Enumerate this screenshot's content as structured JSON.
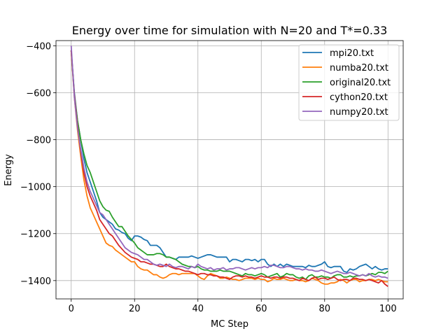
{
  "chart_data": {
    "type": "line",
    "title": "Energy over time for simulation with N=20 and T*=0.33",
    "xlabel": "MC Step",
    "ylabel": "Energy",
    "xlim": [
      -4.8,
      104.8
    ],
    "ylim": [
      -1478,
      -378
    ],
    "xticks": [
      0,
      20,
      40,
      60,
      80,
      100
    ],
    "yticks": [
      -400,
      -600,
      -800,
      -1000,
      -1200,
      -1400
    ],
    "xtick_labels": [
      "0",
      "20",
      "40",
      "60",
      "80",
      "100"
    ],
    "ytick_labels": [
      "−400",
      "−600",
      "−800",
      "−1000",
      "−1200",
      "−1400"
    ],
    "grid": true,
    "legend_position": "top-right",
    "x": [
      0,
      1,
      2,
      3,
      4,
      5,
      6,
      7,
      8,
      9,
      10,
      11,
      12,
      13,
      14,
      15,
      16,
      17,
      18,
      19,
      20,
      21,
      22,
      23,
      24,
      25,
      26,
      27,
      28,
      29,
      30,
      31,
      32,
      33,
      34,
      35,
      36,
      37,
      38,
      39,
      40,
      41,
      42,
      43,
      44,
      45,
      46,
      47,
      48,
      49,
      50,
      51,
      52,
      53,
      54,
      55,
      56,
      57,
      58,
      59,
      60,
      61,
      62,
      63,
      64,
      65,
      66,
      67,
      68,
      69,
      70,
      71,
      72,
      73,
      74,
      75,
      76,
      77,
      78,
      79,
      80,
      81,
      82,
      83,
      84,
      85,
      86,
      87,
      88,
      89,
      90,
      91,
      92,
      93,
      94,
      95,
      96,
      97,
      98,
      99,
      100
    ],
    "series": [
      {
        "name": "mpi20.txt",
        "color": "#1f77b4",
        "values": [
          -420,
          -600,
          -720,
          -800,
          -880,
          -940,
          -980,
          -1020,
          -1060,
          -1110,
          -1130,
          -1140,
          -1150,
          -1160,
          -1180,
          -1185,
          -1195,
          -1200,
          -1220,
          -1230,
          -1210,
          -1210,
          -1215,
          -1225,
          -1230,
          -1250,
          -1250,
          -1250,
          -1260,
          -1280,
          -1300,
          -1300,
          -1305,
          -1310,
          -1300,
          -1300,
          -1300,
          -1300,
          -1295,
          -1300,
          -1305,
          -1300,
          -1295,
          -1290,
          -1290,
          -1295,
          -1300,
          -1300,
          -1300,
          -1300,
          -1320,
          -1310,
          -1310,
          -1315,
          -1320,
          -1310,
          -1310,
          -1315,
          -1310,
          -1320,
          -1310,
          -1310,
          -1330,
          -1340,
          -1330,
          -1340,
          -1330,
          -1340,
          -1330,
          -1335,
          -1340,
          -1340,
          -1340,
          -1340,
          -1345,
          -1335,
          -1340,
          -1340,
          -1335,
          -1330,
          -1320,
          -1340,
          -1345,
          -1340,
          -1340,
          -1340,
          -1360,
          -1365,
          -1350,
          -1355,
          -1350,
          -1340,
          -1335,
          -1330,
          -1340,
          -1350,
          -1340,
          -1350,
          -1355,
          -1350,
          -1350
        ]
      },
      {
        "name": "numba20.txt",
        "color": "#ff7f0e",
        "values": [
          -420,
          -620,
          -760,
          -870,
          -970,
          -1040,
          -1090,
          -1120,
          -1150,
          -1180,
          -1210,
          -1240,
          -1250,
          -1255,
          -1270,
          -1280,
          -1290,
          -1300,
          -1310,
          -1320,
          -1320,
          -1340,
          -1350,
          -1355,
          -1355,
          -1365,
          -1375,
          -1375,
          -1385,
          -1390,
          -1385,
          -1375,
          -1370,
          -1370,
          -1375,
          -1370,
          -1370,
          -1370,
          -1370,
          -1370,
          -1380,
          -1390,
          -1395,
          -1380,
          -1370,
          -1375,
          -1380,
          -1390,
          -1390,
          -1385,
          -1390,
          -1395,
          -1395,
          -1400,
          -1395,
          -1390,
          -1390,
          -1390,
          -1395,
          -1390,
          -1395,
          -1395,
          -1405,
          -1400,
          -1390,
          -1395,
          -1395,
          -1390,
          -1395,
          -1400,
          -1400,
          -1395,
          -1400,
          -1400,
          -1405,
          -1400,
          -1390,
          -1395,
          -1400,
          -1410,
          -1415,
          -1415,
          -1410,
          -1410,
          -1405,
          -1395,
          -1400,
          -1410,
          -1400,
          -1395,
          -1395,
          -1405,
          -1400,
          -1400,
          -1395,
          -1395,
          -1400,
          -1395,
          -1400,
          -1405,
          -1405
        ]
      },
      {
        "name": "original20.txt",
        "color": "#2ca02c",
        "values": [
          -420,
          -610,
          -720,
          -800,
          -860,
          -910,
          -940,
          -980,
          -1020,
          -1060,
          -1085,
          -1100,
          -1105,
          -1130,
          -1150,
          -1170,
          -1170,
          -1190,
          -1210,
          -1225,
          -1240,
          -1260,
          -1270,
          -1280,
          -1290,
          -1290,
          -1290,
          -1285,
          -1285,
          -1290,
          -1300,
          -1300,
          -1305,
          -1310,
          -1320,
          -1330,
          -1335,
          -1340,
          -1340,
          -1345,
          -1340,
          -1350,
          -1355,
          -1355,
          -1360,
          -1360,
          -1360,
          -1355,
          -1360,
          -1360,
          -1360,
          -1365,
          -1370,
          -1375,
          -1380,
          -1370,
          -1375,
          -1375,
          -1380,
          -1375,
          -1370,
          -1375,
          -1385,
          -1380,
          -1375,
          -1370,
          -1385,
          -1380,
          -1370,
          -1375,
          -1375,
          -1385,
          -1390,
          -1385,
          -1395,
          -1380,
          -1375,
          -1385,
          -1385,
          -1380,
          -1385,
          -1385,
          -1390,
          -1380,
          -1375,
          -1375,
          -1385,
          -1385,
          -1380,
          -1385,
          -1380,
          -1380,
          -1375,
          -1380,
          -1375,
          -1370,
          -1375,
          -1365,
          -1365,
          -1370,
          -1360
        ]
      },
      {
        "name": "cython20.txt",
        "color": "#d62728",
        "values": [
          -420,
          -610,
          -740,
          -850,
          -940,
          -1000,
          -1040,
          -1070,
          -1100,
          -1140,
          -1160,
          -1180,
          -1200,
          -1210,
          -1230,
          -1250,
          -1265,
          -1280,
          -1290,
          -1300,
          -1305,
          -1310,
          -1320,
          -1320,
          -1325,
          -1330,
          -1330,
          -1335,
          -1340,
          -1340,
          -1330,
          -1340,
          -1345,
          -1350,
          -1350,
          -1355,
          -1360,
          -1360,
          -1365,
          -1370,
          -1375,
          -1370,
          -1370,
          -1375,
          -1375,
          -1380,
          -1380,
          -1385,
          -1385,
          -1390,
          -1395,
          -1385,
          -1380,
          -1380,
          -1385,
          -1380,
          -1385,
          -1385,
          -1390,
          -1385,
          -1380,
          -1385,
          -1385,
          -1390,
          -1385,
          -1385,
          -1390,
          -1385,
          -1385,
          -1390,
          -1390,
          -1395,
          -1400,
          -1390,
          -1395,
          -1400,
          -1390,
          -1385,
          -1395,
          -1390,
          -1390,
          -1395,
          -1390,
          -1385,
          -1395,
          -1400,
          -1395,
          -1395,
          -1400,
          -1390,
          -1390,
          -1395,
          -1395,
          -1400,
          -1395,
          -1400,
          -1405,
          -1410,
          -1400,
          -1415,
          -1425
        ]
      },
      {
        "name": "numpy20.txt",
        "color": "#9467bd",
        "values": [
          -400,
          -620,
          -750,
          -840,
          -920,
          -980,
          -1020,
          -1050,
          -1080,
          -1110,
          -1120,
          -1140,
          -1160,
          -1180,
          -1200,
          -1220,
          -1240,
          -1260,
          -1270,
          -1280,
          -1285,
          -1290,
          -1300,
          -1310,
          -1310,
          -1320,
          -1330,
          -1335,
          -1330,
          -1335,
          -1340,
          -1330,
          -1340,
          -1345,
          -1340,
          -1340,
          -1345,
          -1350,
          -1340,
          -1345,
          -1330,
          -1340,
          -1345,
          -1350,
          -1345,
          -1355,
          -1350,
          -1350,
          -1345,
          -1355,
          -1350,
          -1350,
          -1345,
          -1345,
          -1350,
          -1355,
          -1350,
          -1345,
          -1350,
          -1345,
          -1345,
          -1340,
          -1345,
          -1335,
          -1335,
          -1340,
          -1345,
          -1345,
          -1340,
          -1340,
          -1345,
          -1350,
          -1350,
          -1355,
          -1350,
          -1355,
          -1355,
          -1360,
          -1360,
          -1355,
          -1360,
          -1365,
          -1370,
          -1365,
          -1360,
          -1365,
          -1370,
          -1370,
          -1365,
          -1370,
          -1375,
          -1380,
          -1375,
          -1380,
          -1370,
          -1380,
          -1385,
          -1380,
          -1385,
          -1385,
          -1390
        ]
      }
    ]
  }
}
